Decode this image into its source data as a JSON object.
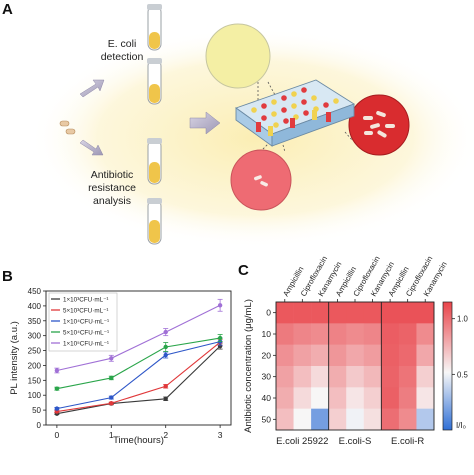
{
  "panels": {
    "a": {
      "letter": "A",
      "detect_label": [
        "E. coli",
        "detection"
      ],
      "resist_label": [
        "Antibiotic",
        "resistance",
        "analysis"
      ]
    },
    "b": {
      "letter": "B"
    },
    "c": {
      "letter": "C"
    }
  },
  "colors": {
    "glow": "#fbf2c6",
    "tube_liquid": "#f0c54a",
    "arrow": "#b7b2c9",
    "plate_blue": "#a9cbe6",
    "red_dish": "#d92c2f",
    "pink_dish": "#ee6b73",
    "yellow_dish": "#f4efa4"
  },
  "chart_data": [
    {
      "type": "line",
      "panel": "B",
      "xlabel": "Time(hours)",
      "ylabel": "PL intensity (a.u.)",
      "x": [
        0,
        1,
        2,
        3
      ],
      "xlim": [
        -0.2,
        3.2
      ],
      "ylim": [
        0,
        450
      ],
      "xticks": [
        0,
        1,
        2,
        3
      ],
      "yticks": [
        0,
        50,
        100,
        150,
        200,
        250,
        300,
        350,
        400,
        450
      ],
      "legend_position": "top-left",
      "series": [
        {
          "name": "1×10³CFU·mL⁻¹",
          "color": "#3a3a3a",
          "values": [
            38,
            72,
            88,
            265
          ],
          "err": [
            3,
            4,
            6,
            10
          ]
        },
        {
          "name": "5×10³CFU·mL⁻¹",
          "color": "#e0383a",
          "values": [
            45,
            73,
            130,
            278
          ],
          "err": [
            3,
            4,
            6,
            10
          ]
        },
        {
          "name": "1×10⁴CFU·mL⁻¹",
          "color": "#2e57c8",
          "values": [
            55,
            92,
            235,
            280
          ],
          "err": [
            4,
            5,
            10,
            12
          ]
        },
        {
          "name": "5×10⁴CFU·mL⁻¹",
          "color": "#2aa54a",
          "values": [
            122,
            158,
            262,
            292
          ],
          "err": [
            5,
            6,
            15,
            12
          ]
        },
        {
          "name": "1×10⁵CFU·mL⁻¹",
          "color": "#a070d6",
          "values": [
            183,
            224,
            312,
            402
          ],
          "err": [
            8,
            10,
            12,
            20
          ]
        }
      ]
    },
    {
      "type": "heatmap",
      "panel": "C",
      "ylabel": "Antibiotic concentration (μg/mL)",
      "rows": [
        0,
        10,
        20,
        30,
        40,
        50
      ],
      "columns": [
        "Ampicillin",
        "Ciprofloxacin",
        "Kanamycin",
        "Ampicillin",
        "Ciprofloxacin",
        "Kanamycin",
        "Ampicillin",
        "Ciprofloxacin",
        "Kanamycin"
      ],
      "groups": [
        "E.coli 25922",
        "E.coli-S",
        "E.coli-R"
      ],
      "colorbar": {
        "label": "I/I₀",
        "ticks": [
          1.0,
          0.5
        ],
        "min": 0.0,
        "max": 1.15
      },
      "values": [
        [
          1.08,
          1.08,
          1.08,
          1.08,
          1.08,
          1.08,
          1.1,
          1.1,
          1.1
        ],
        [
          0.96,
          0.92,
          0.9,
          0.93,
          0.9,
          0.92,
          1.06,
          1.04,
          0.9
        ],
        [
          0.88,
          0.82,
          0.78,
          0.86,
          0.8,
          0.84,
          1.05,
          1.02,
          0.8
        ],
        [
          0.82,
          0.72,
          0.62,
          0.78,
          0.68,
          0.74,
          1.04,
          0.98,
          0.66
        ],
        [
          0.78,
          0.62,
          0.52,
          0.72,
          0.58,
          0.66,
          1.05,
          0.95,
          0.58
        ],
        [
          0.72,
          0.52,
          0.18,
          0.66,
          0.5,
          0.6,
          1.0,
          0.9,
          0.34
        ]
      ]
    }
  ]
}
